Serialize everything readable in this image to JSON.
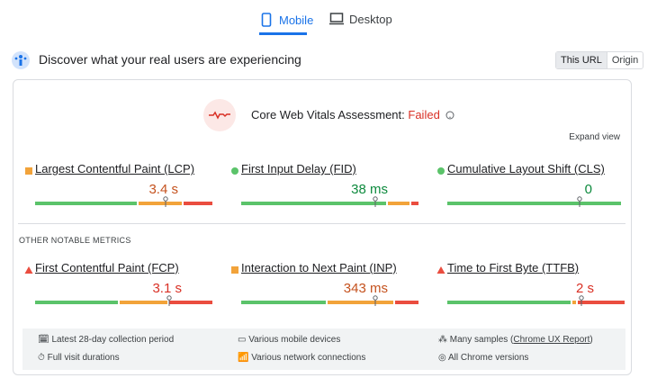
{
  "tabs": [
    "Mobile",
    "Desktop"
  ],
  "header": {
    "title": "Discover what your real users are experiencing",
    "toggle": [
      "This URL",
      "Origin"
    ]
  },
  "assessment": {
    "label": "Core Web Vitals Assessment:",
    "result": "Failed",
    "expand": "Expand view"
  },
  "colors": {
    "good": "#5bc36a",
    "needs_improvement": "#f2a33a",
    "poor": "#ea4d3f"
  },
  "metrics": [
    {
      "name": "Largest Contentful Paint (LCP)",
      "value": "3.4 s",
      "icon": "square",
      "color": "#c5521e",
      "distribution": [
        58,
        25,
        17
      ],
      "p75_position": 73
    },
    {
      "name": "First Input Delay (FID)",
      "value": "38 ms",
      "icon": "circle",
      "color": "#0d8a3d",
      "distribution": [
        82,
        13,
        5
      ],
      "p75_position": 75
    },
    {
      "name": "Cumulative Layout Shift (CLS)",
      "value": "0",
      "icon": "circle",
      "color": "#0d8a3d",
      "distribution": [
        98,
        1,
        1
      ],
      "p75_position": 74
    }
  ],
  "other_title": "OTHER NOTABLE METRICS",
  "other_metrics": [
    {
      "name": "First Contentful Paint (FCP)",
      "value": "3.1 s",
      "icon": "triangle",
      "color": "#d93025",
      "distribution": [
        47,
        28,
        25
      ],
      "p75_position": 75
    },
    {
      "name": "Interaction to Next Paint (INP)",
      "value": "343 ms",
      "icon": "square",
      "color": "#c5521e",
      "distribution": [
        48,
        38,
        14
      ],
      "p75_position": 75
    },
    {
      "name": "Time to First Byte (TTFB)",
      "value": "2 s",
      "icon": "triangle",
      "color": "#d93025",
      "distribution": [
        70,
        3,
        27
      ],
      "p75_position": 75
    }
  ],
  "footer": {
    "left": [
      "Latest 28-day collection period",
      "Full visit durations"
    ],
    "middle": [
      "Various mobile devices",
      "Various network connections"
    ],
    "right": [
      [
        "Many samples (",
        "Chrome UX Report",
        ")"
      ],
      "All Chrome versions"
    ]
  }
}
